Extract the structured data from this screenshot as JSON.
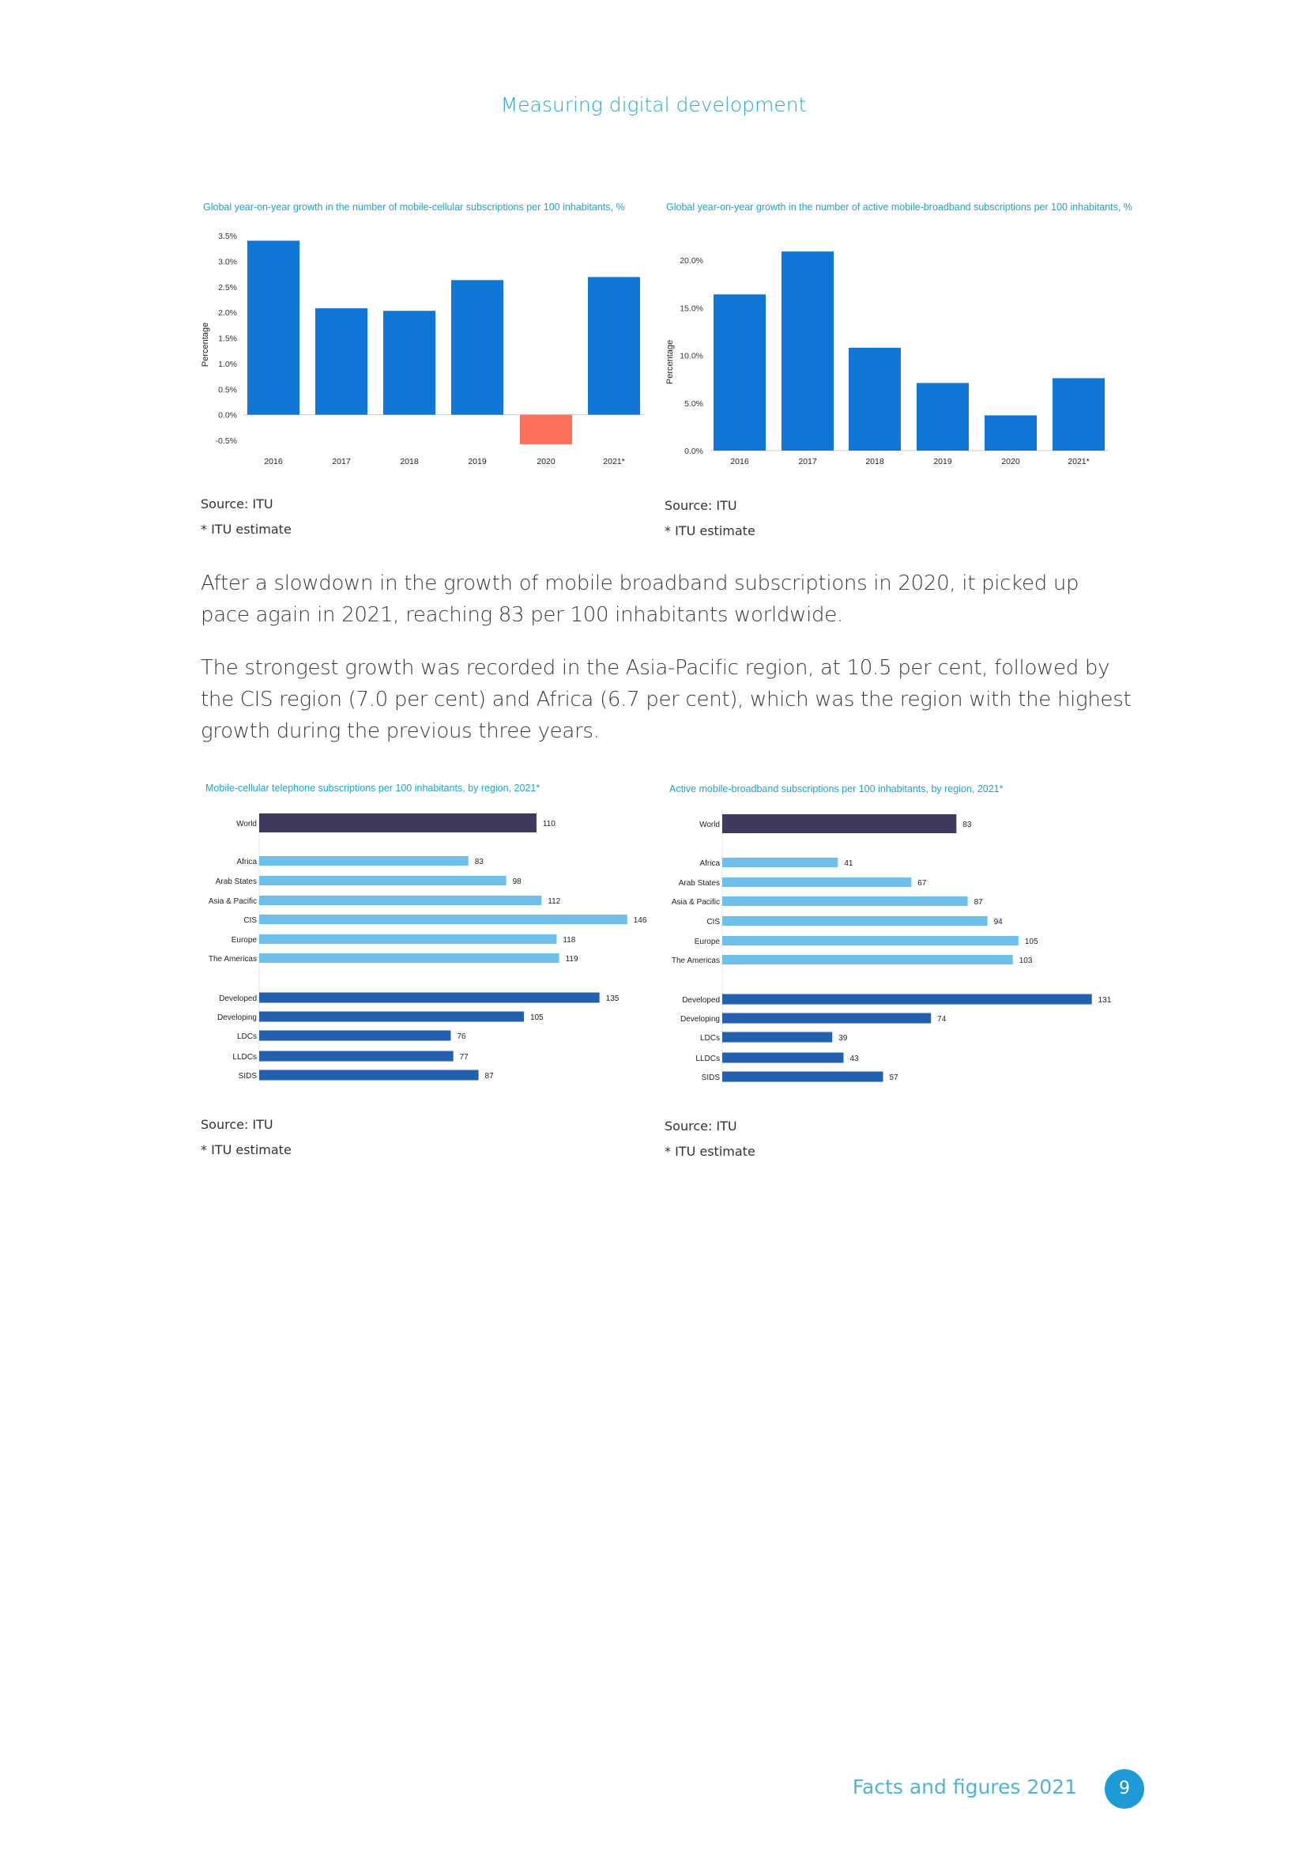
{
  "header": {
    "title": "Measuring digital development"
  },
  "paragraphs": [
    "After a slowdown in the growth of mobile broadband subscriptions in 2020, it picked up pace again in 2021, reaching 83 per 100 inhabitants worldwide.",
    "The strongest growth was recorded in the Asia-Pacific region, at 10.5 per cent, followed by the CIS region (7.0 per cent) and Africa (6.7 per cent), which was the region with the highest growth during the previous three years."
  ],
  "sources": [
    {
      "source": "Source: ITU",
      "note": "* ITU estimate"
    },
    {
      "source": "Source: ITU",
      "note": "* ITU estimate"
    },
    {
      "source": "Source: ITU",
      "note": "* ITU estimate"
    },
    {
      "source": "Source: ITU",
      "note": "* ITU estimate"
    }
  ],
  "footer": {
    "text": "Facts and figures 2021",
    "page": "9"
  },
  "colors": {
    "bar": "#1177d6",
    "negative": "#ff6f5e",
    "world": "#3d3a5e",
    "region": "#6cc0ea",
    "dev": "#2360b0",
    "title": "#1ea3cb"
  },
  "chart_data": [
    {
      "type": "bar",
      "title": "Global year-on-year growth in the number of mobile-cellular subscriptions per 100 inhabitants, %",
      "ylabel": "Percentage",
      "categories": [
        "2016",
        "2017",
        "2018",
        "2019",
        "2020",
        "2021*"
      ],
      "values": [
        3.4,
        2.08,
        2.03,
        2.63,
        -0.58,
        2.69
      ],
      "ylim": [
        -0.5,
        3.5
      ],
      "yticks": [
        "3.5%",
        "3.0%",
        "2.5%",
        "2.0%",
        "1.5%",
        "1.0%",
        "0.5%",
        "0.0%",
        "-0.5%"
      ],
      "ytick_values": [
        3.5,
        3.0,
        2.5,
        2.0,
        1.5,
        1.0,
        0.5,
        0.0,
        -0.5
      ]
    },
    {
      "type": "bar",
      "title": "Global year-on-year growth in the number of active mobile-broadband subscriptions per 100 inhabitants, %",
      "ylabel": "Percentage",
      "categories": [
        "2016",
        "2017",
        "2018",
        "2019",
        "2020",
        "2021*"
      ],
      "values": [
        16.4,
        20.9,
        10.8,
        7.1,
        3.7,
        7.6
      ],
      "ylim": [
        0,
        20
      ],
      "yticks": [
        "20.0%",
        "15.0%",
        "10.0%",
        "5.0%",
        "0.0%"
      ],
      "ytick_values": [
        20,
        15,
        10,
        5,
        0
      ]
    },
    {
      "type": "bar",
      "orientation": "horizontal",
      "title": "Mobile-cellular telephone subscriptions per 100 inhabitants, by region, 2021*",
      "categories": [
        "World",
        "Africa",
        "Arab States",
        "Asia & Pacific",
        "CIS",
        "Europe",
        "The Americas",
        "Developed",
        "Developing",
        "LDCs",
        "LLDCs",
        "SIDS"
      ],
      "groups": [
        "world",
        "region",
        "region",
        "region",
        "region",
        "region",
        "region",
        "dev",
        "dev",
        "dev",
        "dev",
        "dev"
      ],
      "values": [
        110,
        83,
        98,
        112,
        146,
        118,
        119,
        135,
        105,
        76,
        77,
        87
      ]
    },
    {
      "type": "bar",
      "orientation": "horizontal",
      "title": "Active mobile-broadband subscriptions per 100 inhabitants, by region, 2021*",
      "categories": [
        "World",
        "Africa",
        "Arab States",
        "Asia & Pacific",
        "CIS",
        "Europe",
        "The Americas",
        "Developed",
        "Developing",
        "LDCs",
        "LLDCs",
        "SIDS"
      ],
      "groups": [
        "world",
        "region",
        "region",
        "region",
        "region",
        "region",
        "region",
        "dev",
        "dev",
        "dev",
        "dev",
        "dev"
      ],
      "values": [
        83,
        41,
        67,
        87,
        94,
        105,
        103,
        131,
        74,
        39,
        43,
        57
      ]
    }
  ]
}
